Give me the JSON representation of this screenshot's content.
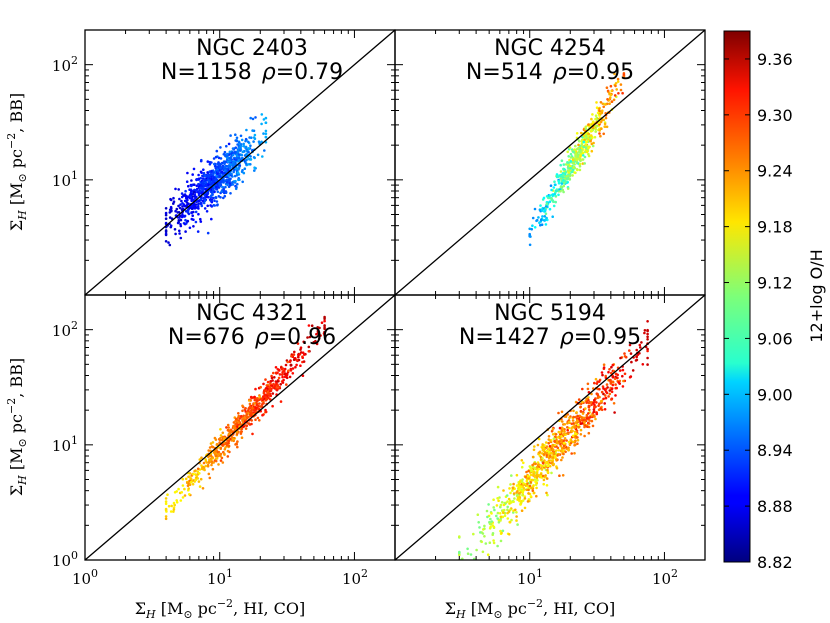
{
  "chart_data": {
    "type": "scatter",
    "x_label": "Σ_H [M_⊙ pc⁻², HI, CO]",
    "y_label": "Σ_H [M_⊙ pc⁻², BB]",
    "axis_scale": "log",
    "xlim": [
      1,
      200
    ],
    "ylim": [
      1,
      200
    ],
    "x_tick_labels": [
      "10^0",
      "10^1",
      "10^2"
    ],
    "y_tick_labels": [
      "10^0",
      "10^1",
      "10^2"
    ],
    "reference_line": "1:1",
    "colorbar": {
      "label": "12+log O/H",
      "range": [
        8.82,
        9.39
      ],
      "ticks": [
        "8.82",
        "8.88",
        "8.94",
        "9.00",
        "9.06",
        "9.12",
        "9.18",
        "9.24",
        "9.30",
        "9.36"
      ],
      "colormap": "jet"
    },
    "panels": [
      {
        "name": "NGC 2403",
        "n_label": "N=1158",
        "rho_value": "=0.79",
        "n_points": 1158,
        "x_range": [
          4,
          22
        ],
        "center": [
          12,
          13
        ],
        "slope": 1.05,
        "scatter_dex": 0.1,
        "z_range": [
          8.86,
          8.99
        ]
      },
      {
        "name": "NGC 4254",
        "n_label": "N=514",
        "rho_value": "=0.95",
        "n_points": 514,
        "x_range": [
          10,
          50
        ],
        "center": [
          20,
          13
        ],
        "slope": 1.9,
        "scatter_dex": 0.07,
        "z_range": [
          8.97,
          9.29
        ]
      },
      {
        "name": "NGC 4321",
        "n_label": "N=676",
        "rho_value": "=0.96",
        "n_points": 676,
        "x_range": [
          4,
          60
        ],
        "center": [
          12,
          12
        ],
        "slope": 1.35,
        "scatter_dex": 0.06,
        "z_range": [
          9.18,
          9.36
        ]
      },
      {
        "name": "NGC 5194",
        "n_label": "N=1427",
        "rho_value": "=0.95",
        "n_points": 1427,
        "x_range": [
          3,
          75
        ],
        "center": [
          20,
          13
        ],
        "slope": 1.35,
        "scatter_dex": 0.1,
        "z_range": [
          9.1,
          9.35
        ]
      }
    ]
  }
}
